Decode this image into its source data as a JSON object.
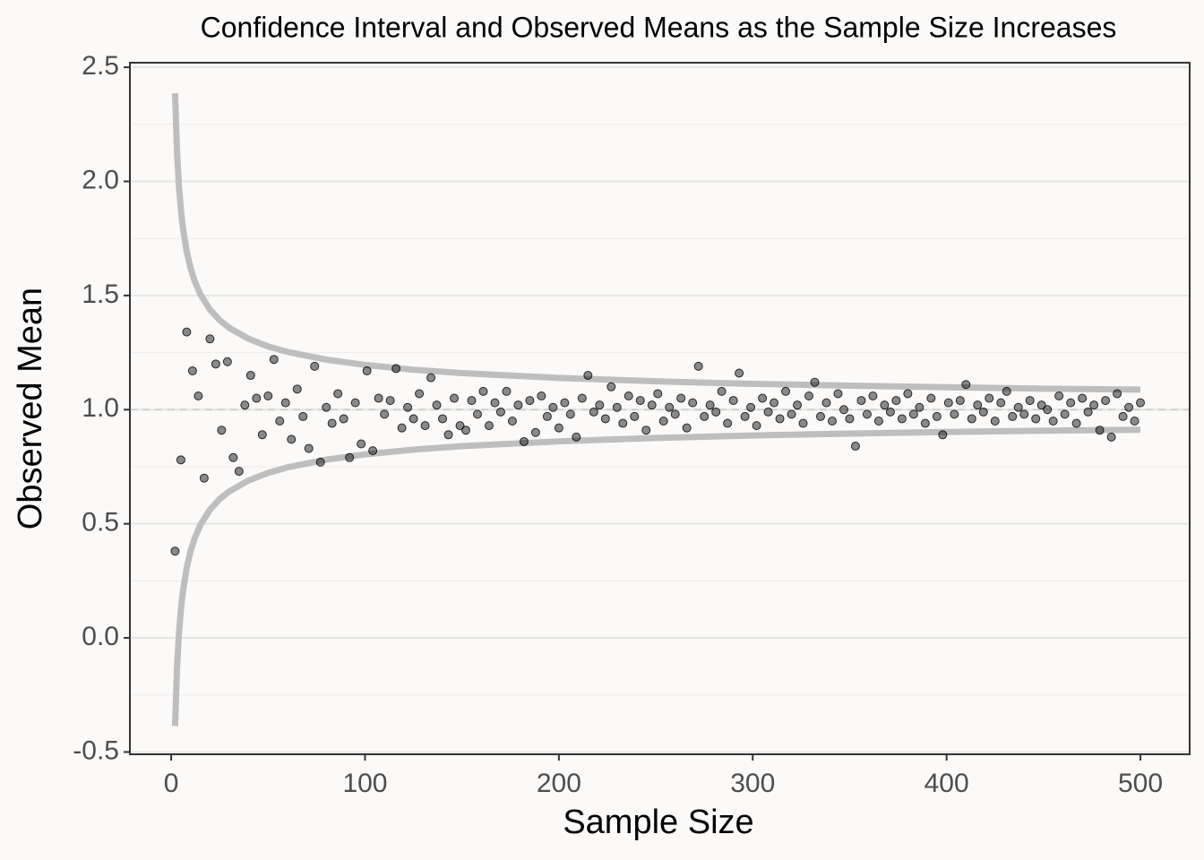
{
  "chart_data": {
    "type": "scatter",
    "title": "Confidence Interval and Observed Means as the Sample Size Increases",
    "x_label": "Sample Size",
    "y_label": "Observed Mean",
    "xlim": [
      -21.3,
      525.4
    ],
    "ylim": [
      -0.51,
      2.52
    ],
    "xticks": [
      0,
      100,
      200,
      300,
      400,
      500
    ],
    "yticks": [
      -0.5,
      {
        "value": 0,
        "label": "0.0"
      },
      0.5,
      {
        "value": 1,
        "label": "1.0"
      },
      1.5,
      {
        "value": 2,
        "label": "2.0"
      },
      2.5
    ],
    "grid": true,
    "reference_line": 1,
    "series": [
      {
        "color": "#000000",
        "x": [
          2,
          5,
          8,
          11,
          14,
          17,
          20,
          23,
          26,
          29,
          32,
          35,
          38,
          41,
          44,
          47,
          50,
          53,
          56,
          59,
          62,
          65,
          68,
          71,
          74,
          77,
          80,
          83,
          86,
          89,
          92,
          95,
          98,
          101,
          104,
          107,
          110,
          113,
          116,
          119,
          122,
          125,
          128,
          131,
          134,
          137,
          140,
          143,
          146,
          149,
          152,
          155,
          158,
          161,
          164,
          167,
          170,
          173,
          176,
          179,
          182,
          185,
          188,
          191,
          194,
          197,
          200,
          203,
          206,
          209,
          212,
          215,
          218,
          221,
          224,
          227,
          230,
          233,
          236,
          239,
          242,
          245,
          248,
          251,
          254,
          257,
          260,
          263,
          266,
          269,
          272,
          275,
          278,
          281,
          284,
          287,
          290,
          293,
          296,
          299,
          302,
          305,
          308,
          311,
          314,
          317,
          320,
          323,
          326,
          329,
          332,
          335,
          338,
          341,
          344,
          347,
          350,
          353,
          356,
          359,
          362,
          365,
          368,
          371,
          374,
          377,
          380,
          383,
          386,
          389,
          392,
          395,
          398,
          401,
          404,
          407,
          410,
          413,
          416,
          419,
          422,
          425,
          428,
          431,
          434,
          437,
          440,
          443,
          446,
          449,
          452,
          455,
          458,
          461,
          464,
          467,
          470,
          473,
          476,
          479,
          482,
          485,
          488,
          491,
          494,
          497,
          500
        ],
        "values": [
          0.38,
          0.78,
          1.34,
          1.17,
          1.06,
          0.7,
          1.31,
          1.2,
          0.91,
          1.21,
          0.79,
          0.73,
          1.02,
          1.15,
          1.05,
          0.89,
          1.06,
          1.22,
          0.95,
          1.03,
          0.87,
          1.09,
          0.97,
          0.83,
          1.19,
          0.77,
          1.01,
          0.94,
          1.07,
          0.96,
          0.79,
          1.03,
          0.85,
          1.17,
          0.82,
          1.05,
          0.98,
          1.04,
          1.18,
          0.92,
          1.01,
          0.96,
          1.07,
          0.93,
          1.14,
          1.02,
          0.96,
          0.89,
          1.05,
          0.93,
          0.91,
          1.04,
          0.98,
          1.08,
          0.93,
          1.03,
          0.99,
          1.08,
          0.95,
          1.02,
          0.86,
          1.04,
          0.9,
          1.06,
          0.97,
          1.01,
          0.92,
          1.03,
          0.98,
          0.88,
          1.05,
          1.15,
          0.99,
          1.02,
          0.96,
          1.1,
          1.01,
          0.94,
          1.06,
          0.97,
          1.04,
          0.91,
          1.02,
          1.07,
          0.95,
          1.01,
          0.98,
          1.05,
          0.92,
          1.03,
          1.19,
          0.97,
          1.02,
          0.99,
          1.08,
          0.94,
          1.04,
          1.16,
          0.97,
          1.01,
          0.93,
          1.05,
          0.99,
          1.03,
          0.96,
          1.08,
          0.98,
          1.02,
          0.94,
          1.06,
          1.12,
          0.97,
          1.03,
          0.95,
          1.07,
          1.0,
          0.96,
          0.84,
          1.04,
          0.98,
          1.06,
          0.95,
          1.02,
          0.99,
          1.04,
          0.96,
          1.07,
          0.98,
          1.01,
          0.94,
          1.05,
          0.97,
          0.89,
          1.03,
          0.98,
          1.04,
          1.11,
          0.96,
          1.02,
          0.99,
          1.05,
          0.95,
          1.03,
          1.08,
          0.97,
          1.01,
          0.98,
          1.04,
          0.96,
          1.02,
          1.0,
          0.95,
          1.06,
          0.98,
          1.03,
          0.94,
          1.05,
          0.99,
          1.02,
          0.91,
          1.04,
          0.88,
          1.07,
          0.97,
          1.01,
          0.95,
          1.03
        ]
      },
      {
        "color": "#bebebe",
        "x": [
          2,
          3,
          4,
          5,
          6,
          8,
          10,
          12,
          15,
          20,
          25,
          30,
          40,
          50,
          60,
          80,
          100,
          125,
          150,
          200,
          250,
          300,
          350,
          400,
          450,
          500
        ],
        "values": [
          2.386,
          2.132,
          1.98,
          1.877,
          1.8,
          1.693,
          1.62,
          1.566,
          1.506,
          1.438,
          1.392,
          1.358,
          1.31,
          1.277,
          1.253,
          1.219,
          1.196,
          1.175,
          1.16,
          1.139,
          1.124,
          1.113,
          1.105,
          1.098,
          1.092,
          1.088
        ]
      },
      {
        "color": "#bebebe",
        "x": [
          2,
          3,
          4,
          5,
          6,
          8,
          10,
          12,
          15,
          20,
          25,
          30,
          40,
          50,
          60,
          80,
          100,
          125,
          150,
          200,
          250,
          300,
          350,
          400,
          450,
          500
        ],
        "values": [
          -0.386,
          -0.132,
          0.02,
          0.123,
          0.2,
          0.307,
          0.38,
          0.434,
          0.494,
          0.562,
          0.608,
          0.642,
          0.69,
          0.723,
          0.747,
          0.781,
          0.804,
          0.825,
          0.84,
          0.861,
          0.876,
          0.887,
          0.895,
          0.902,
          0.908,
          0.912
        ]
      }
    ]
  }
}
